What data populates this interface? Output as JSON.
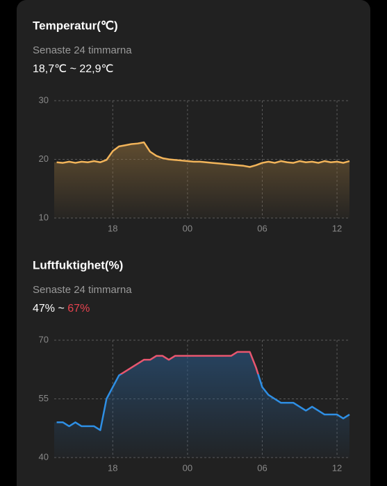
{
  "chart_data": [
    {
      "type": "line",
      "title": "Temperatur(℃)",
      "subtitle": "Senaste 24 timmarna",
      "range": {
        "min": "18,7℃",
        "separator": "~",
        "max": "22,9℃"
      },
      "x": [
        13.5,
        14,
        14.5,
        15,
        15.5,
        16,
        16.5,
        17,
        17.5,
        18,
        18.5,
        19,
        19.5,
        20,
        20.5,
        21,
        21.5,
        22,
        22.5,
        23,
        23.5,
        24,
        24.5,
        25,
        25.5,
        26,
        26.5,
        27,
        27.5,
        28,
        28.5,
        29,
        29.5,
        30,
        30.5,
        31,
        31.5,
        32,
        32.5,
        33,
        33.5,
        34,
        34.5,
        35,
        35.5,
        36,
        36.5,
        37
      ],
      "series": [
        {
          "colors": [
            "#f2b45a"
          ],
          "fill": "#8a6a3a",
          "values": [
            19.5,
            19.4,
            19.6,
            19.4,
            19.6,
            19.5,
            19.7,
            19.5,
            19.9,
            21.4,
            22.2,
            22.4,
            22.6,
            22.7,
            22.9,
            21.3,
            20.6,
            20.2,
            20.0,
            19.9,
            19.8,
            19.7,
            19.6,
            19.6,
            19.5,
            19.4,
            19.3,
            19.2,
            19.1,
            19.0,
            18.9,
            18.7,
            19.0,
            19.4,
            19.6,
            19.4,
            19.7,
            19.5,
            19.4,
            19.7,
            19.5,
            19.6,
            19.4,
            19.7,
            19.5,
            19.6,
            19.4,
            19.7
          ]
        }
      ],
      "xlim": [
        13.3,
        37.0
      ],
      "xticks": [
        {
          "value": 18,
          "label": "18"
        },
        {
          "value": 24,
          "label": "00"
        },
        {
          "value": 30,
          "label": "06"
        },
        {
          "value": 36,
          "label": "12"
        }
      ],
      "ylim": [
        10,
        30
      ],
      "yticks": [
        10,
        20,
        30
      ],
      "grid": true
    },
    {
      "type": "line",
      "title": "Luftfuktighet(%)",
      "subtitle": "Senaste 24 timmarna",
      "range": {
        "min": "47%",
        "separator": "~",
        "max": "67%",
        "max_color": "#e8434f"
      },
      "x": [
        13.5,
        14,
        14.5,
        15,
        15.5,
        16,
        16.5,
        17,
        17.5,
        18,
        18.5,
        19,
        19.5,
        20,
        20.5,
        21,
        21.5,
        22,
        22.5,
        23,
        23.5,
        24,
        24.5,
        25,
        25.5,
        26,
        26.5,
        27,
        27.5,
        28,
        28.5,
        29,
        29.5,
        30,
        30.5,
        31,
        31.5,
        32,
        32.5,
        33,
        33.5,
        34,
        34.5,
        35,
        35.5,
        36,
        36.5,
        37
      ],
      "series": [
        {
          "colors": [
            "#2e8fe5",
            "#e8566f"
          ],
          "fill": "#2a5a8a",
          "values": [
            49,
            49,
            48,
            49,
            48,
            48,
            48,
            47,
            55,
            58,
            61,
            62,
            63,
            64,
            65,
            65,
            66,
            66,
            65,
            66,
            66,
            66,
            66,
            66,
            66,
            66,
            66,
            66,
            66,
            67,
            67,
            67,
            63,
            58,
            56,
            55,
            54,
            54,
            54,
            53,
            52,
            53,
            52,
            51,
            51,
            51,
            50,
            51
          ]
        }
      ],
      "xlim": [
        13.3,
        37.0
      ],
      "xticks": [
        {
          "value": 18,
          "label": "18"
        },
        {
          "value": 24,
          "label": "00"
        },
        {
          "value": 30,
          "label": "06"
        },
        {
          "value": 36,
          "label": "12"
        }
      ],
      "ylim": [
        40,
        70
      ],
      "yticks": [
        40,
        55,
        70
      ],
      "grid": true
    }
  ]
}
